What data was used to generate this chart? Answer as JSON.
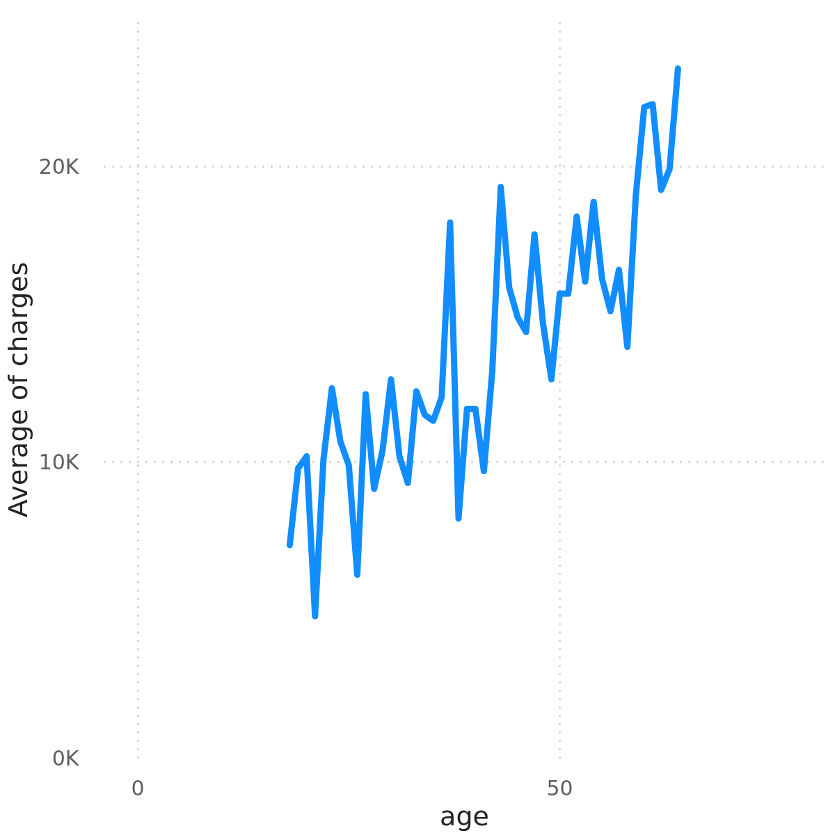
{
  "chart_data": {
    "type": "line",
    "xlabel": "age",
    "ylabel": "Average of charges",
    "x": [
      18,
      19,
      20,
      21,
      22,
      23,
      24,
      25,
      26,
      27,
      28,
      29,
      30,
      31,
      32,
      33,
      34,
      35,
      36,
      37,
      38,
      39,
      40,
      41,
      42,
      43,
      44,
      45,
      46,
      47,
      48,
      49,
      50,
      51,
      52,
      53,
      54,
      55,
      56,
      57,
      58,
      59,
      60,
      61,
      62,
      63,
      64
    ],
    "series": [
      {
        "color": "#118dff",
        "values": [
          7200,
          9800,
          10200,
          4800,
          10100,
          12500,
          10700,
          9900,
          6200,
          12300,
          9100,
          10400,
          12800,
          10200,
          9300,
          12400,
          11600,
          11400,
          12200,
          18100,
          8100,
          11800,
          11800,
          9700,
          13100,
          19300,
          15900,
          14900,
          14400,
          17700,
          14700,
          12800,
          15700,
          15700,
          18300,
          16100,
          18800,
          16200,
          15100,
          16500,
          13900,
          19000,
          22000,
          22100,
          19200,
          19900,
          23300
        ]
      }
    ],
    "xlim": [
      -4,
      81.4
    ],
    "xticks": [
      0,
      50
    ],
    "ylim": [
      0,
      24900
    ],
    "yticks": [
      {
        "value": 0,
        "label": "0K"
      },
      {
        "value": 10000,
        "label": "10K"
      },
      {
        "value": 20000,
        "label": "20K"
      }
    ],
    "grid": true,
    "marker": "none",
    "line_style": "solid"
  }
}
